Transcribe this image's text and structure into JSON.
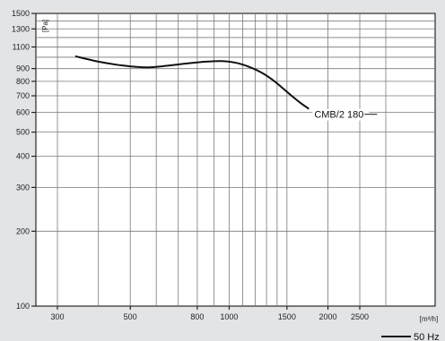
{
  "chart_data": {
    "type": "line",
    "title": "",
    "xlabel": "[m³/h]",
    "ylabel": "[Pa]",
    "x_scale": "log",
    "y_scale": "log",
    "xlim": [
      300,
      3000
    ],
    "ylim": [
      100,
      1500
    ],
    "grid": true,
    "x_ticks": [
      300,
      500,
      800,
      1000,
      1500,
      2000,
      2500
    ],
    "y_ticks": [
      100,
      200,
      300,
      400,
      500,
      600,
      700,
      800,
      900,
      1100,
      1300,
      1500
    ],
    "series": [
      {
        "name": "CMB/2 180",
        "color": "#111111",
        "x": [
          340,
          400,
          480,
          560,
          650,
          750,
          850,
          950,
          1050,
          1150,
          1250,
          1350,
          1450,
          1550,
          1650,
          1750
        ],
        "y": [
          1010,
          960,
          925,
          910,
          925,
          945,
          960,
          965,
          950,
          915,
          870,
          815,
          755,
          700,
          655,
          620
        ]
      }
    ],
    "legend": {
      "label": "50 Hz",
      "position": "bottom-right"
    }
  }
}
